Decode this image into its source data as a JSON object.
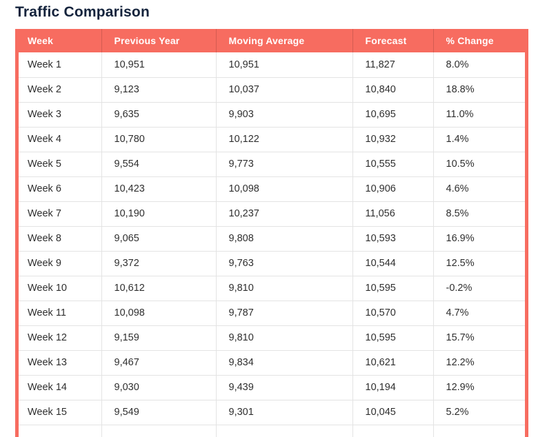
{
  "title": "Traffic Comparison",
  "colors": {
    "accent_coral": "#F76C60",
    "header_text": "#FFFFFF",
    "title_text": "#14233C",
    "body_text": "#2E2E2E",
    "grid_line": "#E3E3E3"
  },
  "table": {
    "columns": [
      "Week",
      "Previous Year",
      "Moving Average",
      "Forecast",
      "% Change"
    ],
    "rows": [
      [
        "Week 1",
        "10,951",
        "10,951",
        "11,827",
        "8.0%"
      ],
      [
        "Week 2",
        "9,123",
        "10,037",
        "10,840",
        "18.8%"
      ],
      [
        "Week 3",
        "9,635",
        "9,903",
        "10,695",
        "11.0%"
      ],
      [
        "Week 4",
        "10,780",
        "10,122",
        "10,932",
        "1.4%"
      ],
      [
        "Week 5",
        "9,554",
        "9,773",
        "10,555",
        "10.5%"
      ],
      [
        "Week 6",
        "10,423",
        "10,098",
        "10,906",
        "4.6%"
      ],
      [
        "Week 7",
        "10,190",
        "10,237",
        "11,056",
        "8.5%"
      ],
      [
        "Week 8",
        "9,065",
        "9,808",
        "10,593",
        "16.9%"
      ],
      [
        "Week 9",
        "9,372",
        "9,763",
        "10,544",
        "12.5%"
      ],
      [
        "Week 10",
        "10,612",
        "9,810",
        "10,595",
        "-0.2%"
      ],
      [
        "Week 11",
        "10,098",
        "9,787",
        "10,570",
        "4.7%"
      ],
      [
        "Week 12",
        "9,159",
        "9,810",
        "10,595",
        "15.7%"
      ],
      [
        "Week 13",
        "9,467",
        "9,834",
        "10,621",
        "12.2%"
      ],
      [
        "Week 14",
        "9,030",
        "9,439",
        "10,194",
        "12.9%"
      ],
      [
        "Week 15",
        "9,549",
        "9,301",
        "10,045",
        "5.2%"
      ]
    ]
  },
  "chart_data": {
    "type": "table",
    "title": "Traffic Comparison",
    "categories": [
      "Week 1",
      "Week 2",
      "Week 3",
      "Week 4",
      "Week 5",
      "Week 6",
      "Week 7",
      "Week 8",
      "Week 9",
      "Week 10",
      "Week 11",
      "Week 12",
      "Week 13",
      "Week 14",
      "Week 15"
    ],
    "series": [
      {
        "name": "Previous Year",
        "values": [
          10951,
          9123,
          9635,
          10780,
          9554,
          10423,
          10190,
          9065,
          9372,
          10612,
          10098,
          9159,
          9467,
          9030,
          9549
        ]
      },
      {
        "name": "Moving Average",
        "values": [
          10951,
          10037,
          9903,
          10122,
          9773,
          10098,
          10237,
          9808,
          9763,
          9810,
          9787,
          9810,
          9834,
          9439,
          9301
        ]
      },
      {
        "name": "Forecast",
        "values": [
          11827,
          10840,
          10695,
          10932,
          10555,
          10906,
          11056,
          10593,
          10544,
          10595,
          10570,
          10595,
          10621,
          10194,
          10045
        ]
      },
      {
        "name": "% Change",
        "values": [
          8.0,
          18.8,
          11.0,
          1.4,
          10.5,
          4.6,
          8.5,
          16.9,
          12.5,
          -0.2,
          4.7,
          15.7,
          12.2,
          12.9,
          5.2
        ]
      }
    ]
  }
}
